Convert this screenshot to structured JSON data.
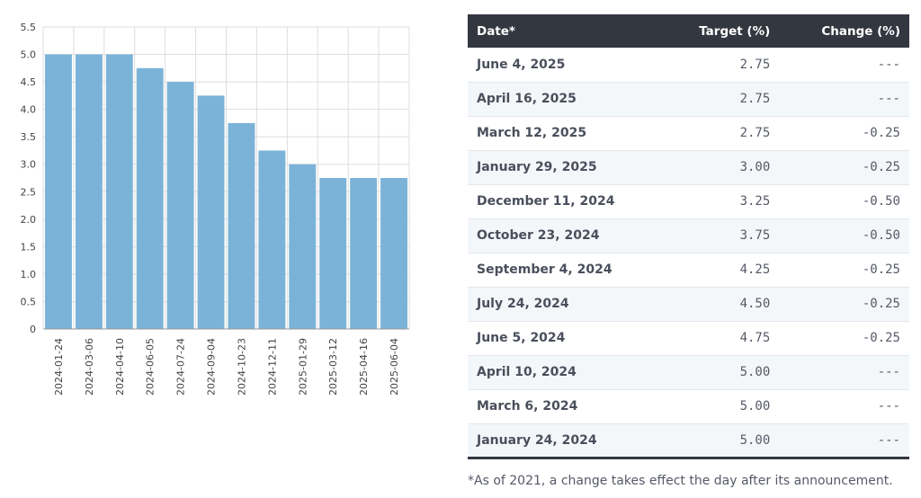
{
  "chart_data": {
    "type": "bar",
    "categories": [
      "2024-01-24",
      "2024-03-06",
      "2024-04-10",
      "2024-06-05",
      "2024-07-24",
      "2024-09-04",
      "2024-10-23",
      "2024-12-11",
      "2025-01-29",
      "2025-03-12",
      "2025-04-16",
      "2025-06-04"
    ],
    "values": [
      5.0,
      5.0,
      5.0,
      4.75,
      4.5,
      4.25,
      3.75,
      3.25,
      3.0,
      2.75,
      2.75,
      2.75
    ],
    "yticks": [
      "0",
      "0.5",
      "1.0",
      "1.5",
      "2.0",
      "2.5",
      "3.0",
      "3.5",
      "4.0",
      "4.5",
      "5.0",
      "5.5"
    ],
    "ylim": [
      0,
      5.5
    ],
    "grid": true,
    "bar_color": "#7bb3d8"
  },
  "table": {
    "headers": {
      "date": "Date*",
      "target": "Target (%)",
      "change": "Change (%)"
    },
    "rows": [
      {
        "date": "June 4, 2025",
        "target": "2.75",
        "change": "---"
      },
      {
        "date": "April 16, 2025",
        "target": "2.75",
        "change": "---"
      },
      {
        "date": "March 12, 2025",
        "target": "2.75",
        "change": "-0.25"
      },
      {
        "date": "January 29, 2025",
        "target": "3.00",
        "change": "-0.25"
      },
      {
        "date": "December 11, 2024",
        "target": "3.25",
        "change": "-0.50"
      },
      {
        "date": "October 23, 2024",
        "target": "3.75",
        "change": "-0.50"
      },
      {
        "date": "September 4, 2024",
        "target": "4.25",
        "change": "-0.25"
      },
      {
        "date": "July 24, 2024",
        "target": "4.50",
        "change": "-0.25"
      },
      {
        "date": "June 5, 2024",
        "target": "4.75",
        "change": "-0.25"
      },
      {
        "date": "April 10, 2024",
        "target": "5.00",
        "change": "---"
      },
      {
        "date": "March 6, 2024",
        "target": "5.00",
        "change": "---"
      },
      {
        "date": "January 24, 2024",
        "target": "5.00",
        "change": "---"
      }
    ]
  },
  "footnote": "*As of 2021, a change takes effect the day after its announcement."
}
